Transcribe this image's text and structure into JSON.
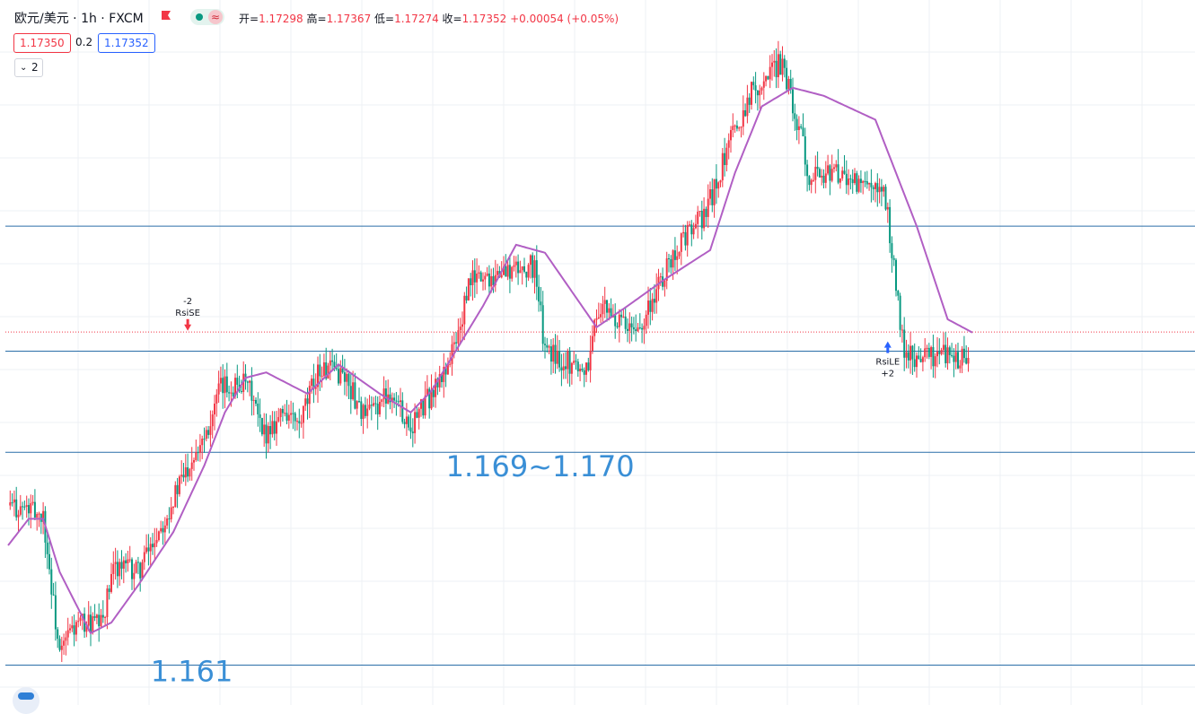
{
  "header": {
    "symbol": "欧元/美元 · 1h · FXCM",
    "ohlc": {
      "open_label": "开=",
      "open": "1.17298",
      "high_label": "高=",
      "high": "1.17367",
      "low_label": "低=",
      "low": "1.17274",
      "close_label": "收=",
      "close": "1.17352",
      "change": "+0.00054 (+0.05%)"
    },
    "bid": "1.17350",
    "spread": "0.2",
    "ask": "1.17352",
    "collapse_count": "2",
    "wave_glyph": "≈"
  },
  "colors": {
    "up": "#f23645",
    "down": "#089981",
    "ma": "#b15fc4",
    "hline": "#2a6ea8",
    "annotation": "#3a8fd6",
    "grid": "#eef0f4"
  },
  "icons": [
    "flag-icon",
    "indicator-dot-icon",
    "wave-icon",
    "chevron-down-icon",
    "tradingview-logo-icon",
    "sell-arrow-icon",
    "buy-arrow-icon"
  ],
  "chart_data": {
    "type": "candlestick",
    "symbol": "EUR/USD",
    "timeframe": "1h",
    "y_range": [
      1.1595,
      1.186
    ],
    "grid": true,
    "horizontal_lines": [
      1.161,
      1.169,
      1.1728,
      1.1775
    ],
    "current_price": 1.17352,
    "close_path": [
      [
        0,
        1.167
      ],
      [
        12,
        1.1668
      ],
      [
        17,
        1.1666
      ],
      [
        25,
        1.1613
      ],
      [
        30,
        1.1623
      ],
      [
        37,
        1.1626
      ],
      [
        45,
        1.1625
      ],
      [
        52,
        1.1648
      ],
      [
        63,
        1.1645
      ],
      [
        78,
        1.1669
      ],
      [
        90,
        1.169
      ],
      [
        98,
        1.1702
      ],
      [
        103,
        1.1714
      ],
      [
        113,
        1.1716
      ],
      [
        118,
        1.1712
      ],
      [
        123,
        1.1696
      ],
      [
        134,
        1.1706
      ],
      [
        141,
        1.1699
      ],
      [
        150,
        1.1721
      ],
      [
        162,
        1.172
      ],
      [
        173,
        1.1703
      ],
      [
        185,
        1.1713
      ],
      [
        195,
        1.17
      ],
      [
        210,
        1.1718
      ],
      [
        218,
        1.1734
      ],
      [
        224,
        1.1755
      ],
      [
        242,
        1.1758
      ],
      [
        255,
        1.176
      ],
      [
        260,
        1.1728
      ],
      [
        280,
        1.1721
      ],
      [
        286,
        1.1745
      ],
      [
        303,
        1.1734
      ],
      [
        315,
        1.1752
      ],
      [
        323,
        1.1766
      ],
      [
        338,
        1.178
      ],
      [
        349,
        1.1805
      ],
      [
        360,
        1.1826
      ],
      [
        375,
        1.1837
      ],
      [
        388,
        1.1795
      ],
      [
        400,
        1.1795
      ],
      [
        425,
        1.1785
      ],
      [
        434,
        1.1726
      ],
      [
        454,
        1.1727
      ],
      [
        465,
        1.1724
      ]
    ],
    "ma_path": [
      [
        0,
        1.1655
      ],
      [
        10,
        1.1665
      ],
      [
        17,
        1.1665
      ],
      [
        25,
        1.1645
      ],
      [
        40,
        1.1622
      ],
      [
        50,
        1.1626
      ],
      [
        63,
        1.164
      ],
      [
        80,
        1.166
      ],
      [
        95,
        1.1685
      ],
      [
        105,
        1.1705
      ],
      [
        115,
        1.1718
      ],
      [
        125,
        1.172
      ],
      [
        145,
        1.1712
      ],
      [
        160,
        1.1723
      ],
      [
        180,
        1.1712
      ],
      [
        195,
        1.1705
      ],
      [
        205,
        1.1713
      ],
      [
        230,
        1.1745
      ],
      [
        246,
        1.1768
      ],
      [
        260,
        1.1765
      ],
      [
        285,
        1.1737
      ],
      [
        300,
        1.1745
      ],
      [
        318,
        1.1755
      ],
      [
        340,
        1.1766
      ],
      [
        352,
        1.1795
      ],
      [
        365,
        1.182
      ],
      [
        380,
        1.1827
      ],
      [
        395,
        1.1824
      ],
      [
        420,
        1.1815
      ],
      [
        440,
        1.1775
      ],
      [
        455,
        1.174
      ],
      [
        467,
        1.1735
      ]
    ],
    "annotations": [
      {
        "text": "1.169~1.170",
        "x": 212,
        "y": 1.1681
      },
      {
        "text": "1.161",
        "x": 69,
        "y": 1.1604
      }
    ],
    "signals": [
      {
        "type": "sell",
        "label": "RsiSE",
        "qty": "-2",
        "x": 87,
        "y": 1.1735
      },
      {
        "type": "buy",
        "label": "RsiLE",
        "qty": "+2",
        "x": 426,
        "y": 1.173
      }
    ]
  }
}
